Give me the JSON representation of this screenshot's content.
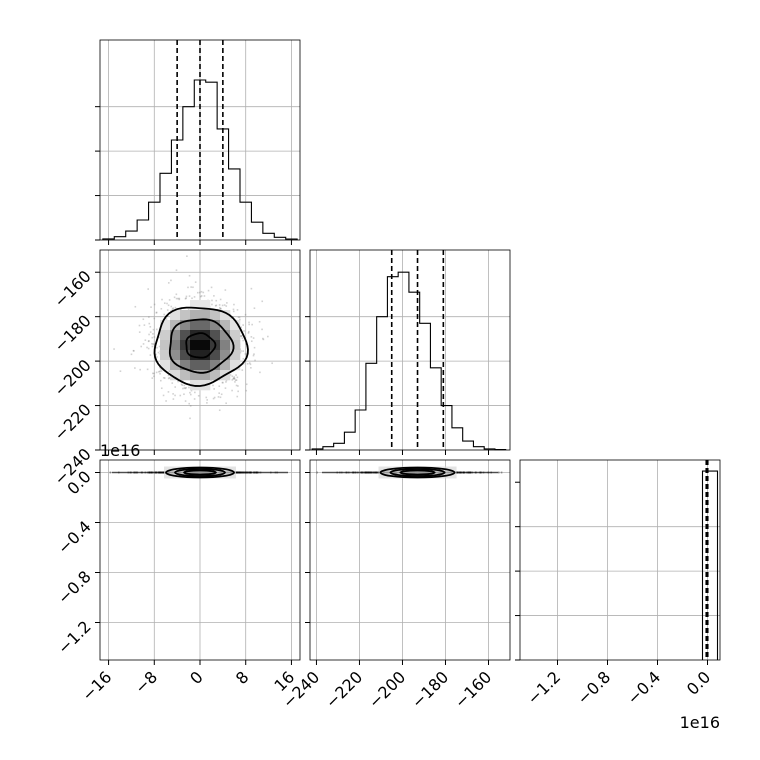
{
  "chart_data": [
    {
      "type": "histogram",
      "panel": "1-1",
      "x_ticks": [
        "−16",
        "−8",
        "0",
        "8",
        "16"
      ],
      "xlim": [
        -17.5,
        17.5
      ],
      "bins": [
        -17,
        -15,
        -13,
        -11,
        -9,
        -7,
        -5,
        -3,
        -1,
        1,
        3,
        5,
        7,
        9,
        11,
        13,
        15,
        17
      ],
      "counts": [
        0.005,
        0.015,
        0.04,
        0.09,
        0.17,
        0.3,
        0.45,
        0.6,
        0.72,
        0.71,
        0.5,
        0.32,
        0.17,
        0.08,
        0.03,
        0.012,
        0.004
      ],
      "quantiles": [
        -4,
        0,
        4
      ],
      "grid": true
    },
    {
      "type": "scatter_density",
      "panel": "2-1",
      "xlim": [
        -17.5,
        17.5
      ],
      "ylim": [
        -240,
        -150
      ],
      "y_ticks": [
        "−160",
        "−180",
        "−200",
        "−220",
        "−240"
      ],
      "center": [
        0,
        -193
      ],
      "spread": [
        4,
        10
      ],
      "contour_levels": [
        1,
        2,
        3
      ],
      "grid": true
    },
    {
      "type": "histogram",
      "panel": "2-2",
      "xlim": [
        -243,
        -150
      ],
      "bins": [
        -242,
        -237,
        -232,
        -227,
        -222,
        -217,
        -212,
        -207,
        -202,
        -197,
        -192,
        -187,
        -182,
        -177,
        -172,
        -167,
        -162,
        -157,
        -152
      ],
      "counts": [
        0.005,
        0.015,
        0.03,
        0.08,
        0.18,
        0.39,
        0.6,
        0.78,
        0.8,
        0.71,
        0.57,
        0.37,
        0.2,
        0.1,
        0.04,
        0.015,
        0.005,
        0.002
      ],
      "quantiles": [
        -205,
        -193,
        -181
      ],
      "grid": true
    },
    {
      "type": "scatter_density",
      "panel": "3-1",
      "xlim": [
        -17.5,
        17.5
      ],
      "ylim": [
        -1.5e+16,
        1000000000000000.0
      ],
      "y_ticks": [
        "0.0",
        "−0.4",
        "−0.8",
        "−1.2"
      ],
      "y_offset_label": "1e16",
      "center": [
        0,
        0
      ],
      "grid": true
    },
    {
      "type": "scatter_density",
      "panel": "3-2",
      "xlim": [
        -243,
        -150
      ],
      "ylim": [
        -1.5e+16,
        1000000000000000.0
      ],
      "x_ticks": [
        "−240",
        "−220",
        "−200",
        "−180",
        "−160"
      ],
      "center": [
        -193,
        0
      ],
      "grid": true
    },
    {
      "type": "histogram",
      "panel": "3-3",
      "xlim": [
        -1.5e+16,
        1000000000000000.0
      ],
      "x_ticks": [
        "−1.2",
        "−0.8",
        "−0.4",
        "0.0"
      ],
      "x_offset_label": "1e16",
      "bins": [
        -400000000000000.0,
        0.0,
        800000000000000.0
      ],
      "counts": [
        0.85,
        0.85
      ],
      "quantiles": [
        -100000000000000.0,
        0.0,
        20000000000000.0
      ],
      "grid": true
    }
  ]
}
